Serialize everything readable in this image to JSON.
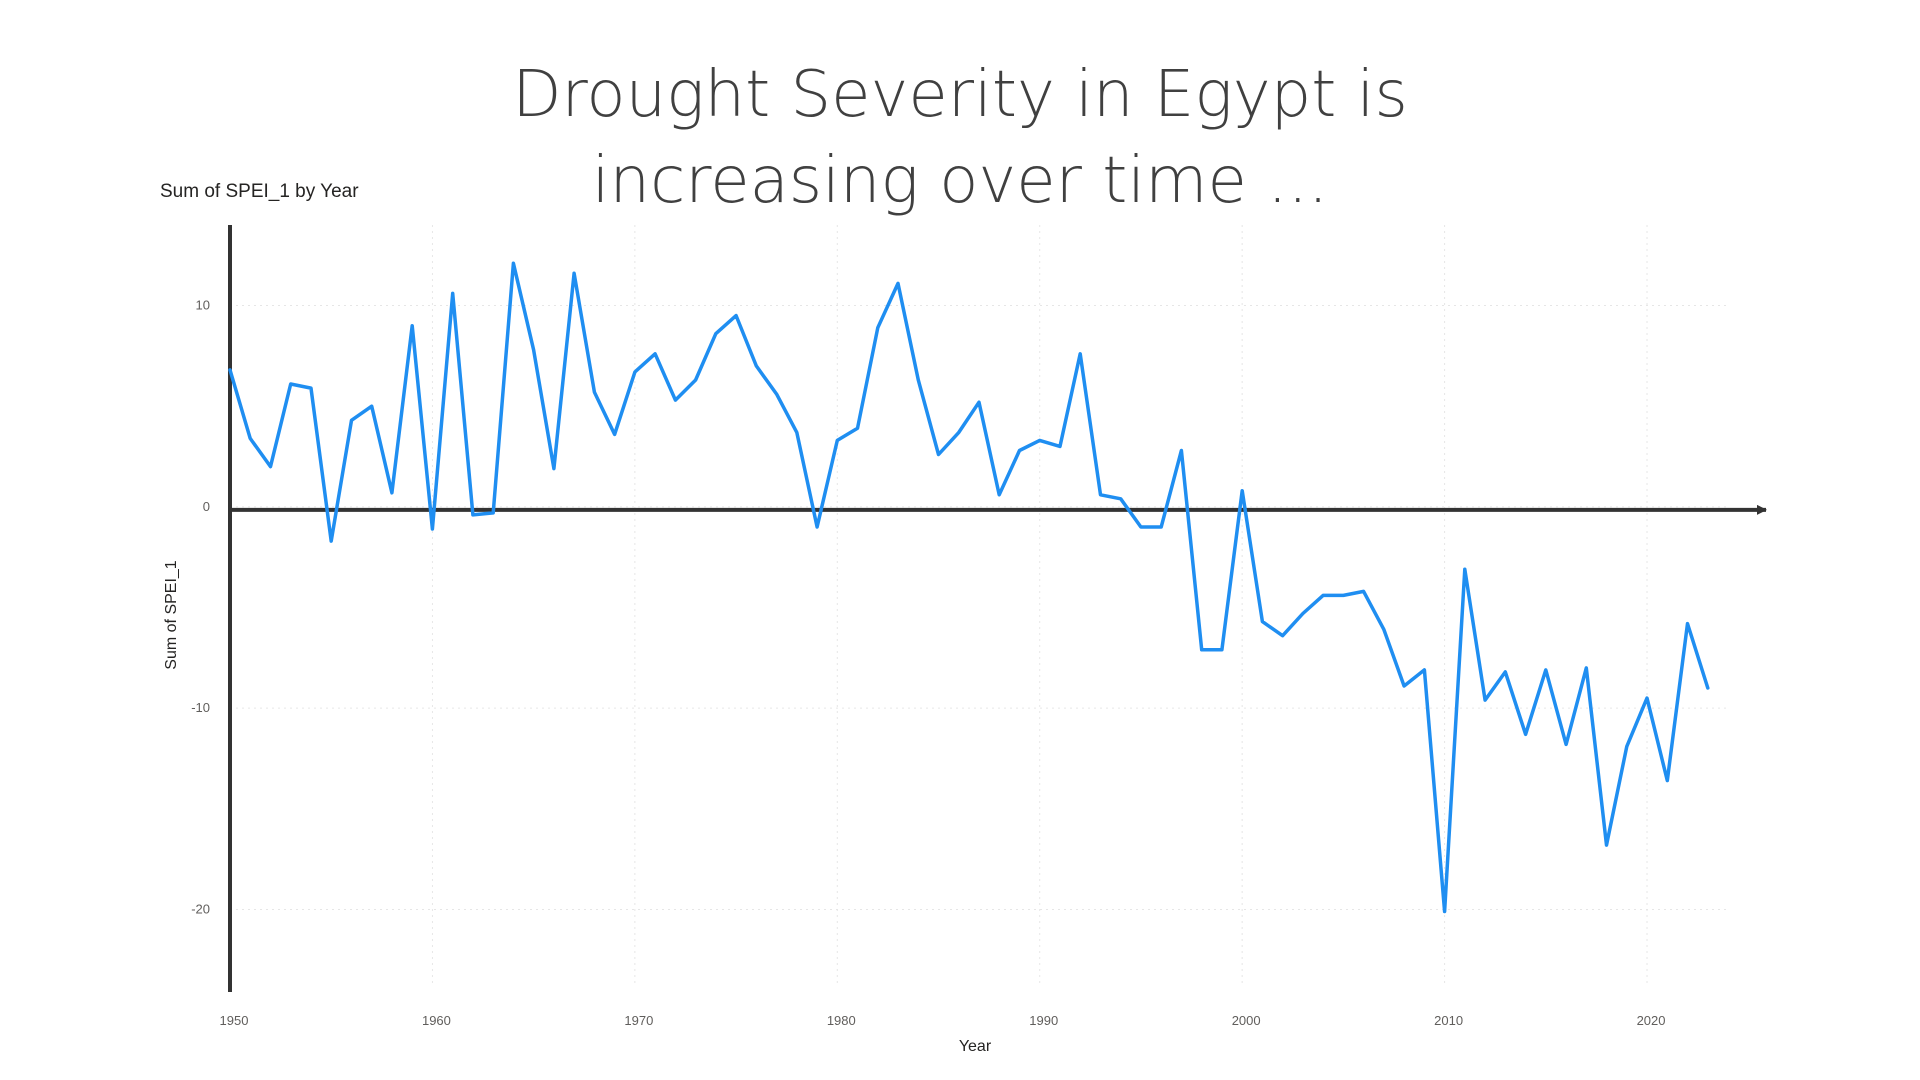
{
  "slide": {
    "title_line1": "Drought Severity in Egypt is",
    "title_line2": "increasing over time ..."
  },
  "chart_data": {
    "type": "line",
    "title": "Sum of SPEI_1 by Year",
    "xlabel": "Year",
    "ylabel": "Sum of SPEI_1",
    "xlim": [
      1950,
      2024
    ],
    "ylim": [
      -24,
      14
    ],
    "x_ticks": [
      1950,
      1960,
      1970,
      1980,
      1990,
      2000,
      2010,
      2020
    ],
    "y_ticks": [
      -20,
      -10,
      0,
      10
    ],
    "grid": true,
    "line_color": "#1f8ef1",
    "axis_color": "#333333",
    "series": [
      {
        "x": [
          1950,
          1951,
          1952,
          1953,
          1954,
          1955,
          1956,
          1957,
          1958,
          1959,
          1960,
          1961,
          1962,
          1963,
          1964,
          1965,
          1966,
          1967,
          1968,
          1969,
          1970,
          1971,
          1972,
          1973,
          1974,
          1975,
          1976,
          1977,
          1978,
          1979,
          1980,
          1981,
          1982,
          1983,
          1984,
          1985,
          1986,
          1987,
          1988,
          1989,
          1990,
          1991,
          1992,
          1993,
          1994,
          1995,
          1996,
          1997,
          1998,
          1999,
          2000,
          2001,
          2002,
          2003,
          2004,
          2005,
          2006,
          2007,
          2008,
          2009,
          2010,
          2011,
          2012,
          2013,
          2014,
          2015,
          2016,
          2017,
          2018,
          2019,
          2020,
          2021,
          2022,
          2023
        ],
        "values": [
          6.8,
          3.4,
          2.0,
          6.1,
          5.9,
          -1.7,
          4.3,
          5.0,
          0.7,
          9.0,
          -1.1,
          10.6,
          -0.4,
          -0.3,
          12.1,
          7.8,
          1.9,
          11.6,
          5.7,
          3.6,
          6.7,
          7.6,
          5.3,
          6.3,
          8.6,
          9.5,
          7.0,
          5.6,
          3.7,
          -1.0,
          3.3,
          3.9,
          8.9,
          11.1,
          6.3,
          2.6,
          3.7,
          5.2,
          0.6,
          2.8,
          3.3,
          3.0,
          7.6,
          0.6,
          0.4,
          -1.0,
          -1.0,
          2.8,
          -7.1,
          -7.1,
          0.8,
          -5.7,
          -6.4,
          -5.3,
          -4.4,
          -4.4,
          -4.2,
          -6.1,
          -8.9,
          -8.1,
          -20.1,
          -3.1,
          -9.6,
          -8.2,
          -11.3,
          -8.1,
          -11.8,
          -8.0,
          -16.8,
          -11.9,
          -9.5,
          -13.6,
          -5.8,
          -9.0
        ]
      }
    ]
  }
}
